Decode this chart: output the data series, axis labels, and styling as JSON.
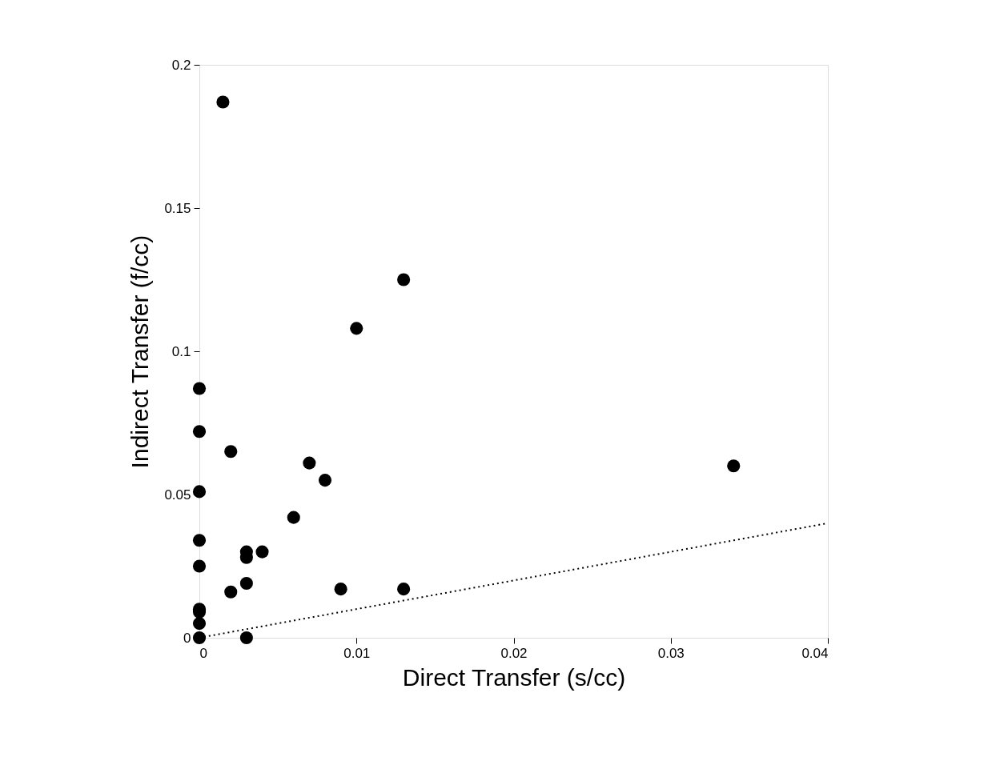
{
  "chart_data": {
    "type": "scatter",
    "xlabel": "Direct Transfer (s/cc)",
    "ylabel": "Indirect Transfer (f/cc)",
    "xlim": [
      0,
      0.04
    ],
    "ylim": [
      0,
      0.2
    ],
    "xticks": [
      0,
      0.01,
      0.02,
      0.03,
      0.04
    ],
    "yticks": [
      0,
      0.05,
      0.1,
      0.15,
      0.2
    ],
    "grid": false,
    "series": [
      {
        "color": "#000000",
        "marker": "circle",
        "x": [
          0,
          0,
          0,
          0,
          0,
          0,
          0,
          0,
          0,
          0.0015,
          0.002,
          0.002,
          0.003,
          0.003,
          0.003,
          0.003,
          0.004,
          0.006,
          0.007,
          0.008,
          0.009,
          0.01,
          0.013,
          0.013,
          0.034
        ],
        "values": [
          0.087,
          0.072,
          0.051,
          0.034,
          0.025,
          0.01,
          0.009,
          0.005,
          0,
          0.187,
          0.065,
          0.016,
          0.03,
          0.028,
          0.019,
          0,
          0.03,
          0.042,
          0.061,
          0.055,
          0.017,
          0.108,
          0.125,
          0.017,
          0.06
        ]
      },
      {
        "type": "line",
        "color": "#000000",
        "line_style": "dotted",
        "x": [
          0,
          0.04
        ],
        "values": [
          0,
          0.04
        ]
      }
    ]
  }
}
